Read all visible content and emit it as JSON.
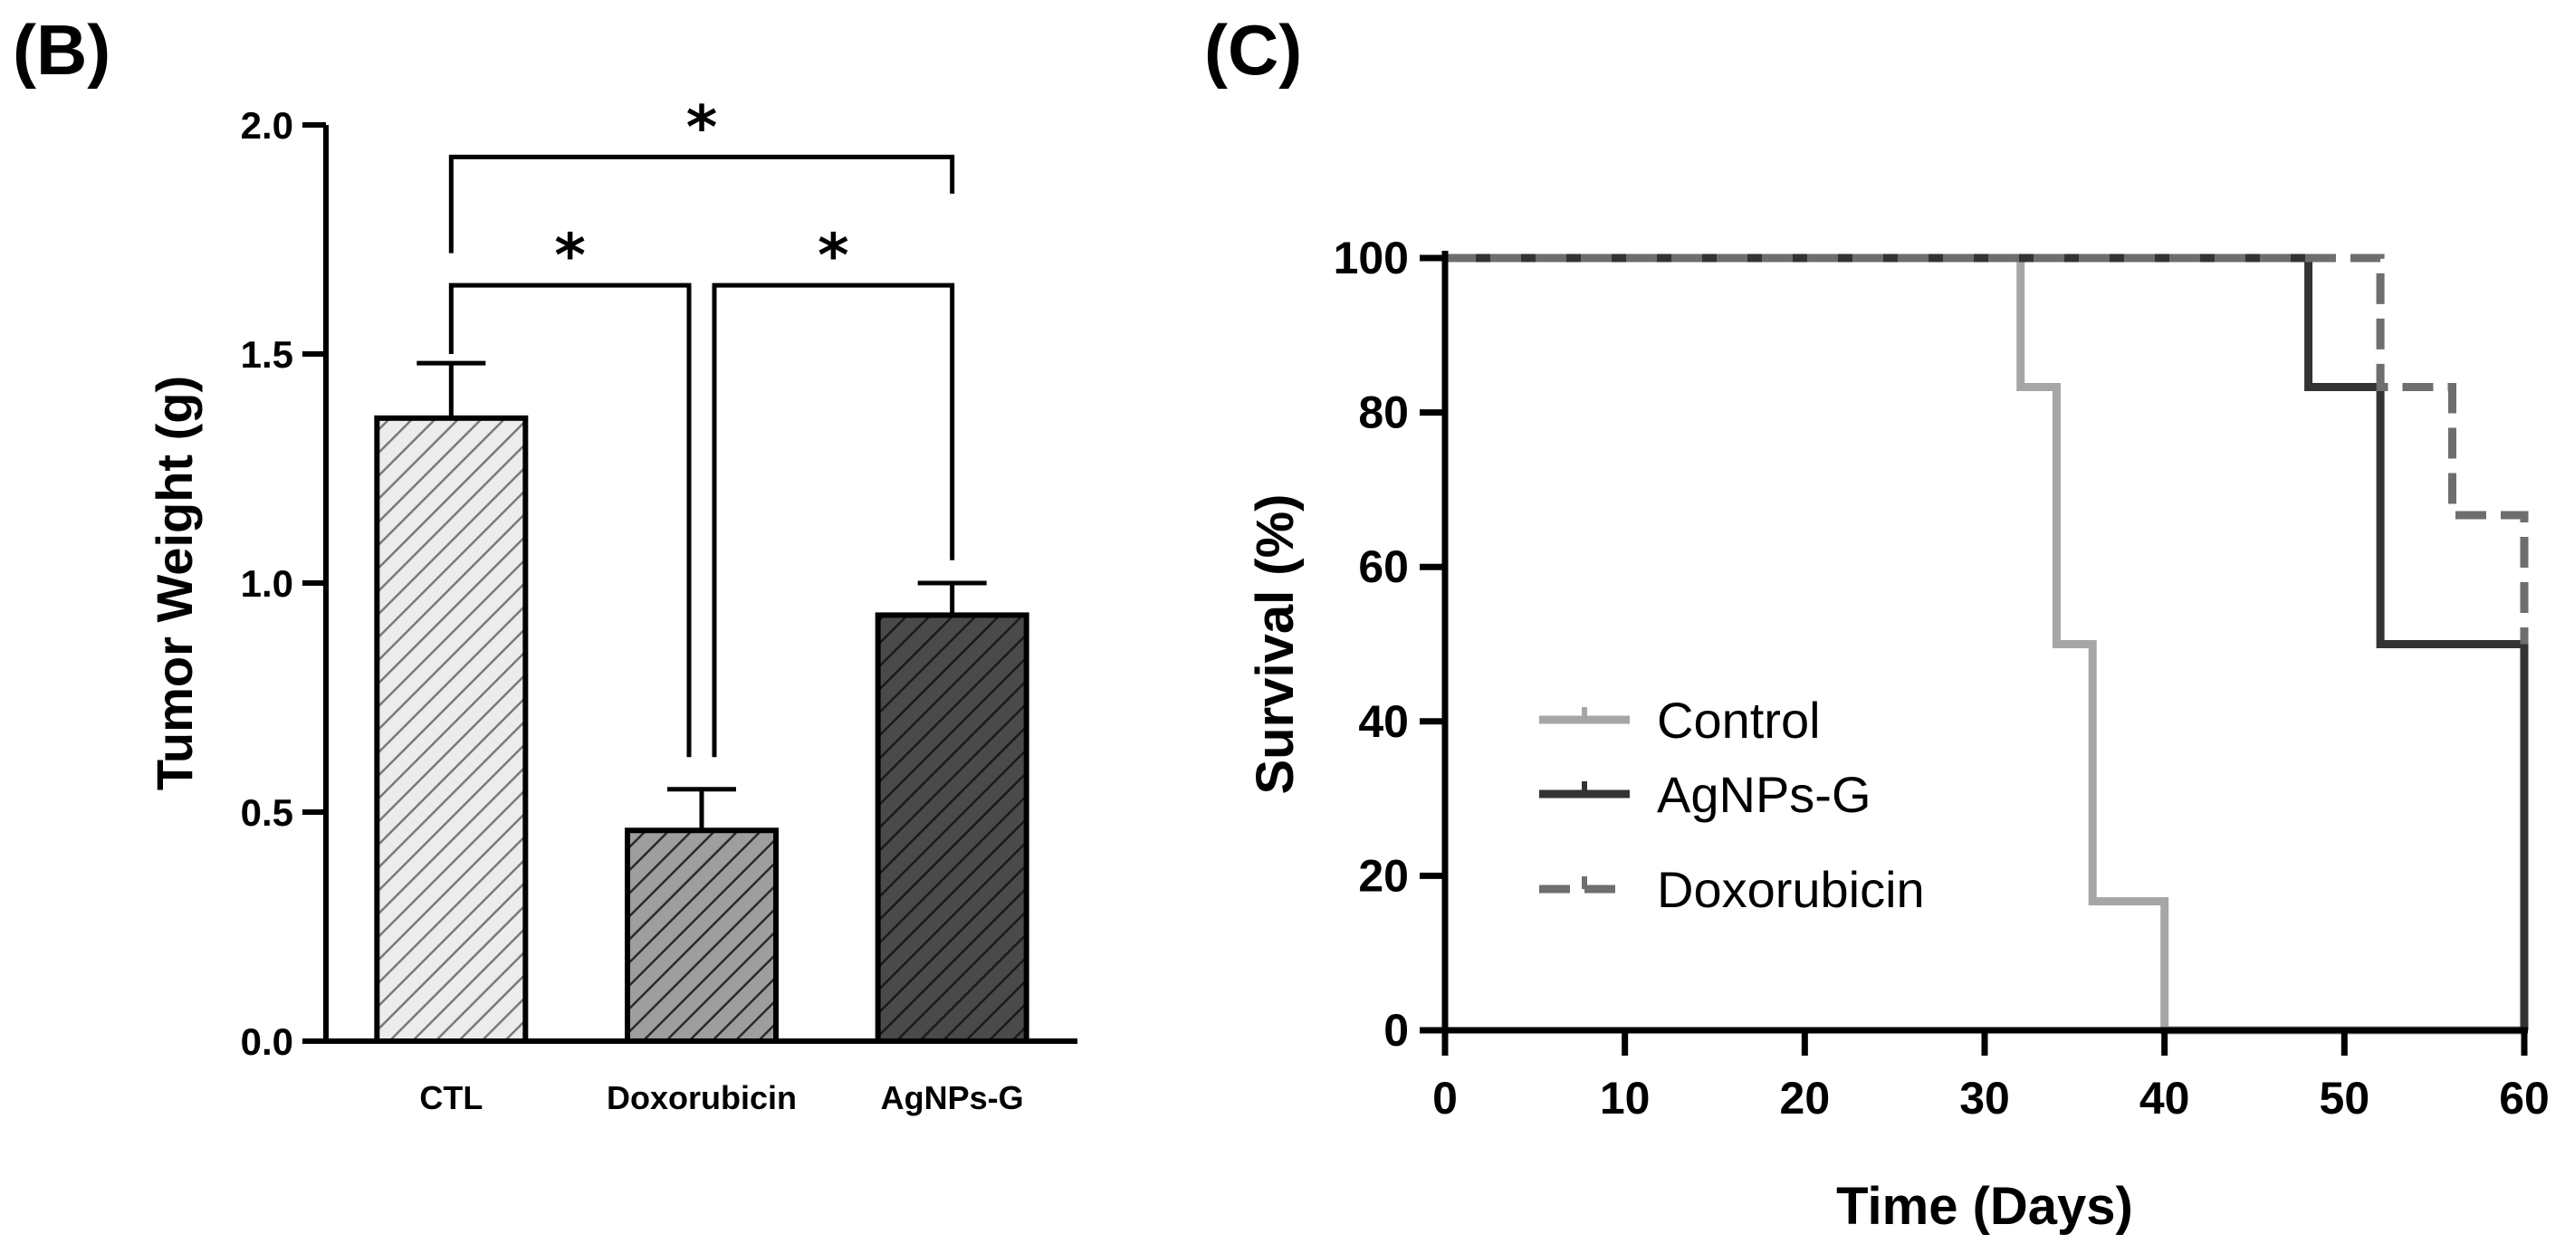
{
  "panels": {
    "b_label": "(B)",
    "c_label": "(C)"
  },
  "chart_data": [
    {
      "type": "bar",
      "panel": "(B)",
      "title": "",
      "xlabel": "",
      "ylabel": "Tumor Weight (g)",
      "ylim": [
        0,
        2.0
      ],
      "yticks": [
        0.0,
        0.5,
        1.0,
        1.5,
        2.0
      ],
      "ytick_labels": [
        "0.0",
        "0.5",
        "1.0",
        "1.5",
        "2.0"
      ],
      "categories": [
        "CTL",
        "Doxorubicin",
        "AgNPs-G"
      ],
      "values": [
        1.36,
        0.46,
        0.93
      ],
      "errors": [
        0.12,
        0.09,
        0.07
      ],
      "fill_colors": [
        "#ececec",
        "#9e9e9e",
        "#4a4a4a"
      ],
      "hatch_colors": [
        "#7a7a7a",
        "#2a2a2a",
        "#1a1a1a"
      ],
      "significance": [
        {
          "from": 0,
          "to": 1,
          "label": "*"
        },
        {
          "from": 1,
          "to": 2,
          "label": "*"
        },
        {
          "from": 0,
          "to": 2,
          "label": "*"
        }
      ],
      "grid": false
    },
    {
      "type": "line",
      "panel": "(C)",
      "title": "",
      "xlabel": "Time (Days)",
      "ylabel": "Survival (%)",
      "xlim": [
        0,
        60
      ],
      "ylim": [
        0,
        100
      ],
      "xticks": [
        0,
        10,
        20,
        30,
        40,
        50,
        60
      ],
      "xtick_labels": [
        "0",
        "10",
        "20",
        "30",
        "40",
        "50",
        "60"
      ],
      "yticks": [
        0,
        20,
        40,
        60,
        80,
        100
      ],
      "ytick_labels": [
        "0",
        "20",
        "40",
        "60",
        "80",
        "100"
      ],
      "step": true,
      "legend_position": "center-left",
      "grid": false,
      "series": [
        {
          "name": "Control",
          "color": "#a6a6a6",
          "dashed": false,
          "points": [
            [
              0,
              100
            ],
            [
              32,
              100
            ],
            [
              32,
              83.3
            ],
            [
              34,
              83.3
            ],
            [
              34,
              50
            ],
            [
              36,
              50
            ],
            [
              36,
              16.7
            ],
            [
              40,
              16.7
            ],
            [
              40,
              0
            ],
            [
              60,
              0
            ]
          ]
        },
        {
          "name": "AgNPs-G",
          "color": "#333333",
          "dashed": false,
          "points": [
            [
              0,
              100
            ],
            [
              48,
              100
            ],
            [
              48,
              83.3
            ],
            [
              52,
              83.3
            ],
            [
              52,
              50
            ],
            [
              60,
              50
            ],
            [
              60,
              0
            ]
          ]
        },
        {
          "name": "Doxorubicin",
          "color": "#6e6e6e",
          "dashed": true,
          "points": [
            [
              0,
              100
            ],
            [
              52,
              100
            ],
            [
              52,
              83.3
            ],
            [
              56,
              83.3
            ],
            [
              56,
              66.7
            ],
            [
              60,
              66.7
            ],
            [
              60,
              50
            ]
          ]
        }
      ]
    }
  ]
}
